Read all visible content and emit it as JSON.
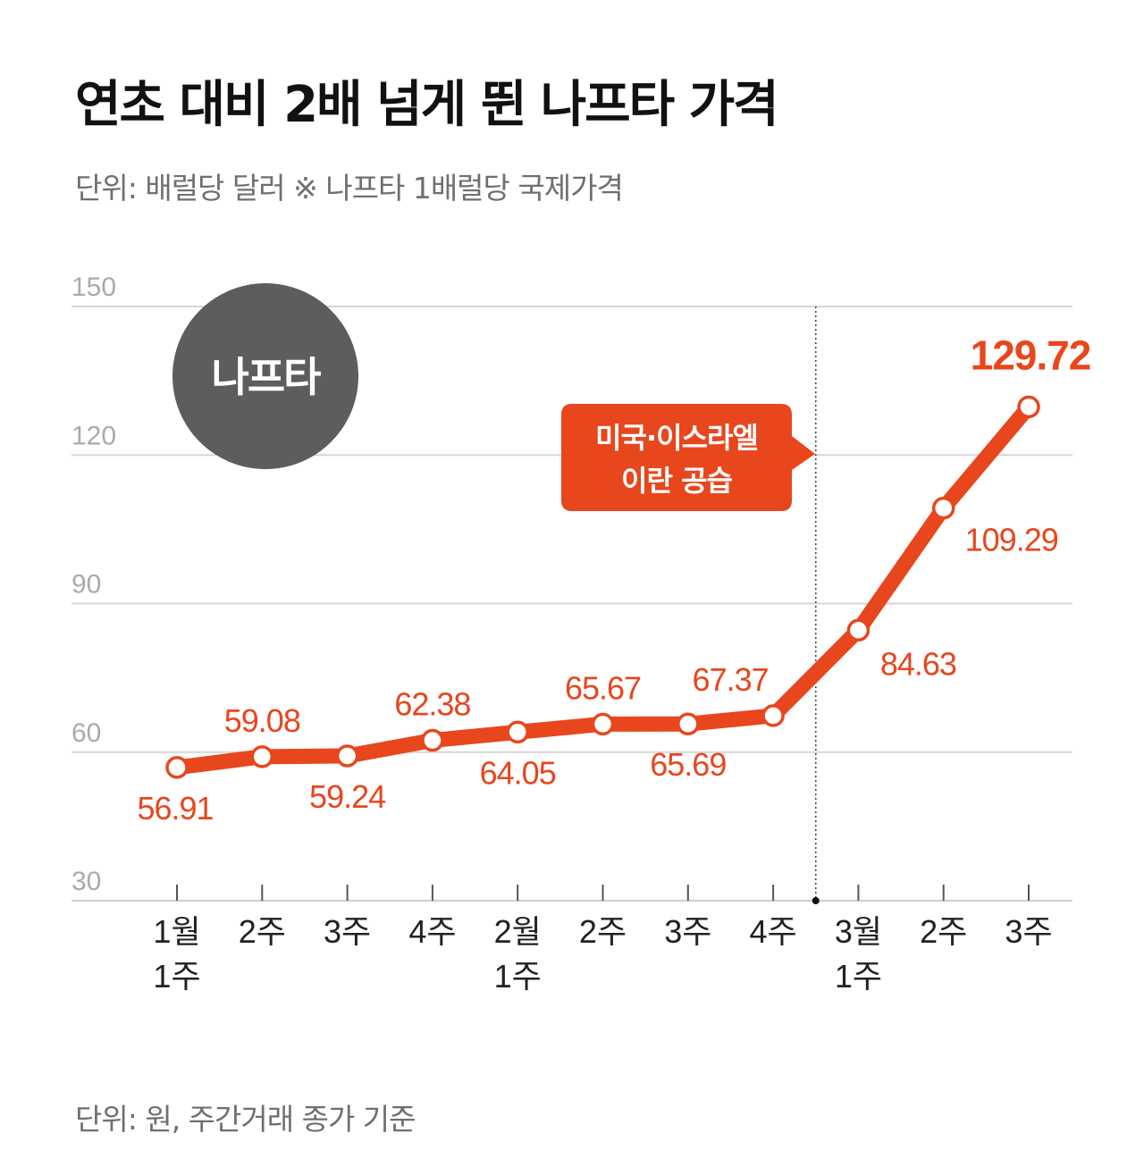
{
  "title": "연초 대비 2배 넘게 뛴 나프타 가격",
  "subtitle": "단위: 배럴당 달러 ※ 나프타 1배럴당 국제가격",
  "footnote": "단위: 원, 주간거래 종가 기준",
  "badge": "나프타",
  "callout": [
    "미국·이스라엘",
    "이란 공습"
  ],
  "colors": {
    "accent": "#e8461d",
    "badge": "#5d5d5d",
    "grid": "#d6d6d6",
    "axis_text": "#aaaaaa"
  },
  "chart_data": {
    "type": "line",
    "title": "연초 대비 2배 넘게 뛴 나프타 가격",
    "ylabel": "배럴당 달러",
    "ylim": [
      30,
      150
    ],
    "yticks": [
      30,
      60,
      90,
      120,
      150
    ],
    "grid": true,
    "categories": [
      [
        "1월",
        "1주"
      ],
      [
        "2주"
      ],
      [
        "3주"
      ],
      [
        "4주"
      ],
      [
        "2월",
        "1주"
      ],
      [
        "2주"
      ],
      [
        "3주"
      ],
      [
        "4주"
      ],
      [
        "3월",
        "1주"
      ],
      [
        "2주"
      ],
      [
        "3주"
      ]
    ],
    "series": [
      {
        "name": "나프타",
        "values": [
          56.91,
          59.08,
          59.24,
          62.38,
          64.05,
          65.67,
          65.69,
          67.37,
          84.63,
          109.29,
          129.72
        ],
        "labels": [
          "56.91",
          "59.08",
          "59.24",
          "62.38",
          "64.05",
          "65.67",
          "65.69",
          "67.37",
          "84.63",
          "109.29",
          "129.72"
        ]
      }
    ],
    "annotation": {
      "text": "미국·이스라엘 이란 공습",
      "between_categories": [
        7,
        8
      ]
    }
  }
}
